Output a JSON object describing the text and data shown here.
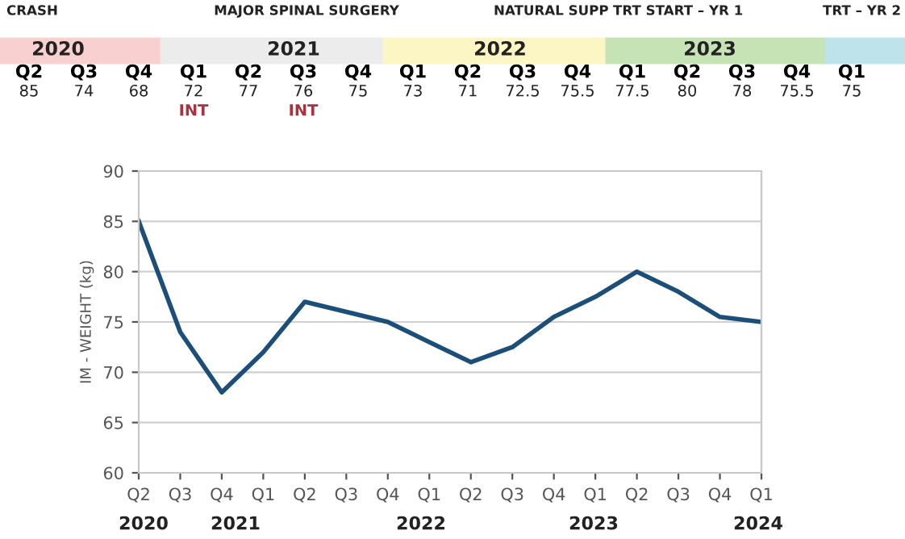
{
  "chart_data": {
    "type": "line",
    "ylabel": "IM - WEIGHT (kg)",
    "categories": [
      "Q2",
      "Q3",
      "Q4",
      "Q1",
      "Q2",
      "Q3",
      "Q4",
      "Q1",
      "Q2",
      "Q3",
      "Q4",
      "Q1",
      "Q2",
      "Q3",
      "Q4",
      "Q1"
    ],
    "series": [
      {
        "color": "#1b4f7a",
        "values": [
          85,
          74,
          68,
          72,
          77,
          76,
          75,
          73,
          71,
          72.5,
          75.5,
          77.5,
          80,
          78,
          75.5,
          75
        ]
      }
    ],
    "ylim": [
      60,
      90
    ],
    "yticks": [
      60,
      65,
      70,
      75,
      80,
      85,
      90
    ],
    "grid": "y",
    "marker": "none",
    "line_style": "solid",
    "annotations": [
      "CRASH",
      "MAJOR SPINAL SURGERY",
      "NATURAL SUPP",
      "TRT START – YR 1",
      "TRT – YR 2",
      "2020",
      "2021",
      "2022",
      "2023",
      "INT",
      "INT",
      "2020",
      "2021",
      "2022",
      "2023",
      "2024",
      "85",
      "74",
      "68",
      "72",
      "77",
      "76",
      "75",
      "73",
      "71",
      "72.5",
      "75.5",
      "77.5",
      "80",
      "78",
      "75.5",
      "75"
    ]
  }
}
